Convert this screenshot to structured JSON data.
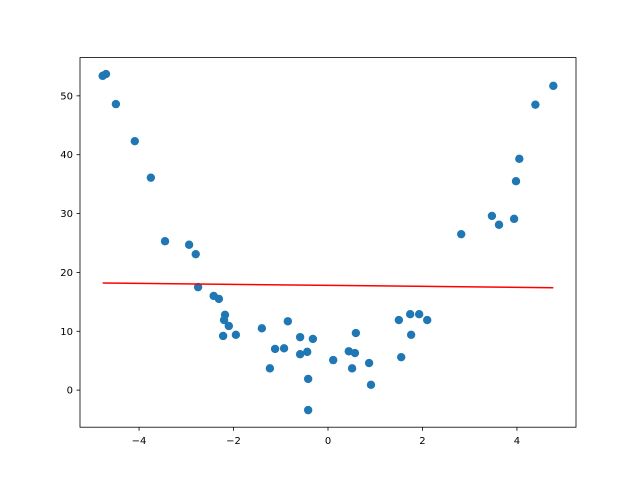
{
  "chart_data": {
    "type": "scatter",
    "title": "",
    "xlabel": "",
    "ylabel": "",
    "xlim": [
      -5.25,
      5.25
    ],
    "ylim": [
      -6.3,
      56.5
    ],
    "grid": false,
    "xticks": [
      -4,
      -2,
      0,
      2,
      4
    ],
    "yticks": [
      0,
      10,
      20,
      30,
      40,
      50
    ],
    "xtick_labels": [
      "−4",
      "−2",
      "0",
      "2",
      "4"
    ],
    "ytick_labels": [
      "0",
      "10",
      "20",
      "30",
      "40",
      "50"
    ],
    "colors": {
      "points": "#1f77b4",
      "line": "#ff0000"
    },
    "series": [
      {
        "type": "scatter",
        "points": [
          [
            -4.77,
            53.4
          ],
          [
            -4.7,
            53.7
          ],
          [
            -4.49,
            48.6
          ],
          [
            -4.09,
            42.3
          ],
          [
            -3.75,
            36.1
          ],
          [
            -3.45,
            25.3
          ],
          [
            -2.94,
            24.7
          ],
          [
            -2.8,
            23.1
          ],
          [
            -2.75,
            17.5
          ],
          [
            -2.42,
            16.0
          ],
          [
            -2.31,
            15.5
          ],
          [
            -2.18,
            12.8
          ],
          [
            -2.2,
            11.9
          ],
          [
            -2.1,
            10.9
          ],
          [
            -2.22,
            9.2
          ],
          [
            -1.95,
            9.4
          ],
          [
            -1.4,
            10.5
          ],
          [
            -1.23,
            3.7
          ],
          [
            -1.12,
            7.0
          ],
          [
            -0.93,
            7.1
          ],
          [
            -0.85,
            11.7
          ],
          [
            -0.59,
            9.0
          ],
          [
            -0.59,
            6.1
          ],
          [
            -0.44,
            6.5
          ],
          [
            -0.42,
            1.9
          ],
          [
            -0.42,
            -3.4
          ],
          [
            -0.32,
            8.7
          ],
          [
            0.11,
            5.1
          ],
          [
            0.44,
            6.6
          ],
          [
            0.51,
            3.7
          ],
          [
            0.57,
            6.3
          ],
          [
            0.59,
            9.7
          ],
          [
            0.87,
            4.6
          ],
          [
            0.91,
            0.9
          ],
          [
            1.5,
            11.9
          ],
          [
            1.55,
            5.6
          ],
          [
            1.74,
            12.9
          ],
          [
            1.76,
            9.4
          ],
          [
            1.93,
            12.9
          ],
          [
            2.1,
            11.9
          ],
          [
            2.82,
            26.5
          ],
          [
            3.47,
            29.6
          ],
          [
            3.62,
            28.1
          ],
          [
            3.94,
            29.1
          ],
          [
            3.98,
            35.5
          ],
          [
            4.05,
            39.3
          ],
          [
            4.39,
            48.5
          ],
          [
            4.77,
            51.7
          ]
        ]
      },
      {
        "type": "line",
        "points": [
          [
            -4.77,
            18.2
          ],
          [
            4.77,
            17.4
          ]
        ]
      }
    ]
  }
}
